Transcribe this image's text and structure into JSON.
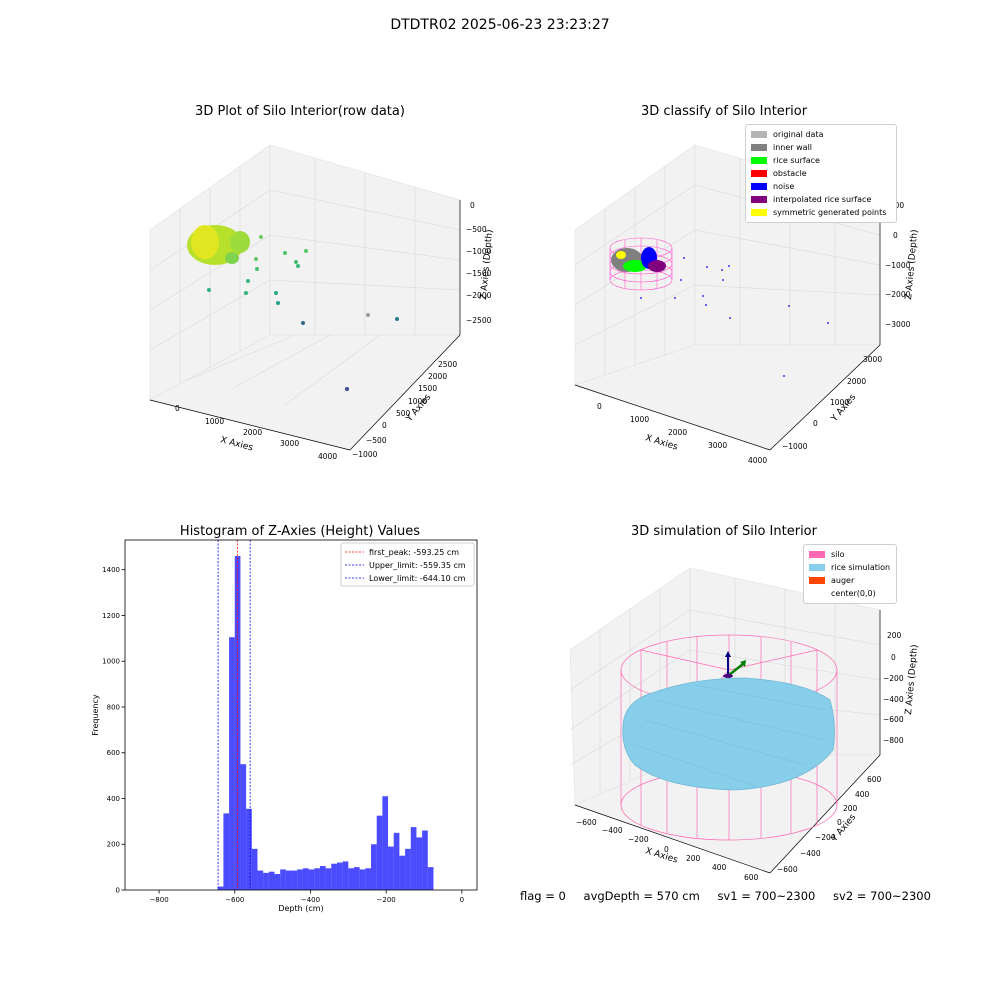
{
  "suptitle": "DTDTR02 2025-06-23 23:23:27",
  "panels": {
    "raw": {
      "title": "3D Plot of Silo Interior(row data)",
      "xlabel": "X Axies",
      "ylabel": "Y Axies",
      "zlabel": "Z Axies (Depth)",
      "xticks": [
        "0",
        "1000",
        "2000",
        "3000",
        "4000"
      ],
      "yticks": [
        "−1000",
        "−500",
        "0",
        "500",
        "1000",
        "1500",
        "2000",
        "2500"
      ],
      "zticks": [
        "0",
        "−500",
        "−1000",
        "−1500",
        "−2000",
        "−2500"
      ]
    },
    "classify": {
      "title": "3D classify of Silo Interior",
      "xlabel": "X Axies",
      "ylabel": "Y Axies",
      "zlabel": "Z Axies (Depth)",
      "xticks": [
        "0",
        "1000",
        "2000",
        "3000",
        "4000"
      ],
      "yticks": [
        "−1000",
        "0",
        "1000",
        "2000",
        "3000"
      ],
      "zticks": [
        "1000",
        "0",
        "−1000",
        "−2000",
        "−3000"
      ],
      "legend": [
        {
          "label": "original data",
          "color": "#b3b3b3"
        },
        {
          "label": "inner wall",
          "color": "#808080"
        },
        {
          "label": "rice surface",
          "color": "#00ff00"
        },
        {
          "label": "obstacle",
          "color": "#ff0000"
        },
        {
          "label": "noise",
          "color": "#0000ff"
        },
        {
          "label": "interpolated rice surface",
          "color": "#800080"
        },
        {
          "label": "symmetric generated points",
          "color": "#ffff00"
        }
      ]
    },
    "histogram": {
      "title": "Histogram of Z-Axies (Height) Values",
      "xlabel": "Depth (cm)",
      "ylabel": "Frequency"
    },
    "simulation": {
      "title": "3D simulation of Silo Interior",
      "xlabel": "X Axies",
      "ylabel": "Y Axies",
      "zlabel": "Z Axies (Depth)",
      "xticks": [
        "−600",
        "−400",
        "−200",
        "0",
        "200",
        "400",
        "600"
      ],
      "yticks": [
        "−600",
        "−400",
        "−200",
        "0",
        "200",
        "400",
        "600"
      ],
      "zticks": [
        "200",
        "0",
        "−200",
        "−400",
        "−600",
        "−800"
      ],
      "legend": [
        {
          "label": "silo",
          "color": "#ff69b4"
        },
        {
          "label": "rice simulation",
          "color": "#87ceeb"
        },
        {
          "label": "auger",
          "color": "#ff4500"
        },
        {
          "label": "center(0,0)",
          "color": "#ffffff"
        }
      ]
    }
  },
  "footer": {
    "flag": "flag = 0",
    "avg": "avgDepth = 570 cm",
    "sv1": "sv1 = 700~2300",
    "sv2": "sv2 = 700~2300"
  },
  "chart_data": {
    "type": "bar",
    "title": "Histogram of Z-Axies (Height) Values",
    "xlabel": "Depth (cm)",
    "ylabel": "Frequency",
    "xlim": [
      -890,
      40
    ],
    "ylim": [
      0,
      1530
    ],
    "xticks": [
      -800,
      -600,
      -400,
      -200,
      0
    ],
    "yticks": [
      0,
      200,
      400,
      600,
      800,
      1000,
      1200,
      1400
    ],
    "bin_width": 15,
    "bins_start": [
      -645,
      -630,
      -615,
      -600,
      -585,
      -570,
      -555,
      -540,
      -525,
      -510,
      -495,
      -480,
      -465,
      -450,
      -435,
      -420,
      -405,
      -390,
      -375,
      -360,
      -345,
      -330,
      -315,
      -300,
      -285,
      -270,
      -255,
      -240,
      -225,
      -210,
      -195,
      -180,
      -165,
      -150,
      -135,
      -120,
      -105,
      -90,
      -75,
      -60,
      -45,
      -30,
      -15
    ],
    "counts": [
      15,
      335,
      1105,
      1460,
      550,
      355,
      180,
      85,
      75,
      80,
      70,
      90,
      85,
      85,
      90,
      95,
      90,
      95,
      105,
      95,
      115,
      120,
      125,
      95,
      100,
      90,
      95,
      200,
      325,
      410,
      190,
      250,
      150,
      180,
      275,
      230,
      260,
      100,
      0,
      0,
      0,
      0,
      0
    ],
    "color": "#0000ff",
    "lines": [
      {
        "label": "first_peak: -593.25 cm",
        "x": -593.25,
        "color": "#ff0000"
      },
      {
        "label": "Upper_limit: -559.35 cm",
        "x": -559.35,
        "color": "#0000ff"
      },
      {
        "label": "Lower_limit: -644.10 cm",
        "x": -644.1,
        "color": "#0000ff"
      }
    ],
    "legend_position": "upper right"
  }
}
